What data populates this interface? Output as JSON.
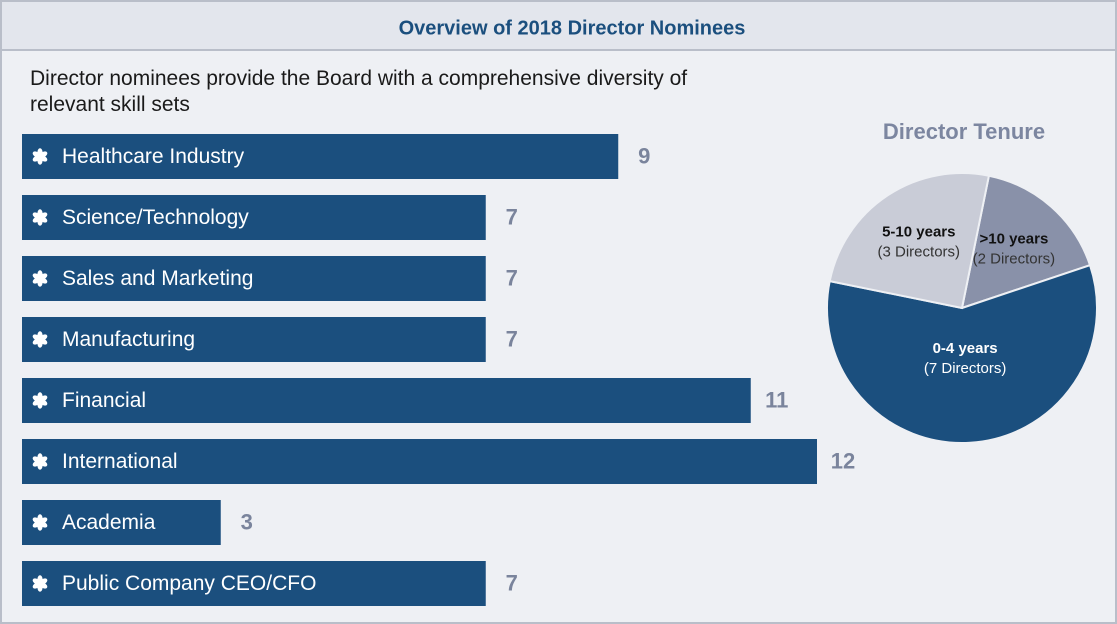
{
  "chart_data": [
    {
      "type": "bar",
      "orientation": "horizontal",
      "title": "Overview of 2018 Director Nominees",
      "subtitle": "Director nominees provide the Board with a comprehensive diversity of relevant skill sets",
      "categories": [
        "Healthcare Industry",
        "Science/Technology",
        "Sales and Marketing",
        "Manufacturing",
        "Financial",
        "International",
        "Academia",
        "Public Company CEO/CFO"
      ],
      "values": [
        9,
        7,
        7,
        7,
        11,
        12,
        3,
        7
      ],
      "color": "#1b4f7e"
    },
    {
      "type": "pie",
      "title": "Director Tenure",
      "categories": [
        ">10 years",
        "0-4 years",
        "5-10 years"
      ],
      "values": [
        2,
        7,
        3
      ],
      "value_labels": [
        "(2 Directors)",
        "(7 Directors)",
        "(3 Directors)"
      ],
      "colors": [
        "#8991a9",
        "#1b4f7e",
        "#c9ccd7"
      ]
    }
  ]
}
